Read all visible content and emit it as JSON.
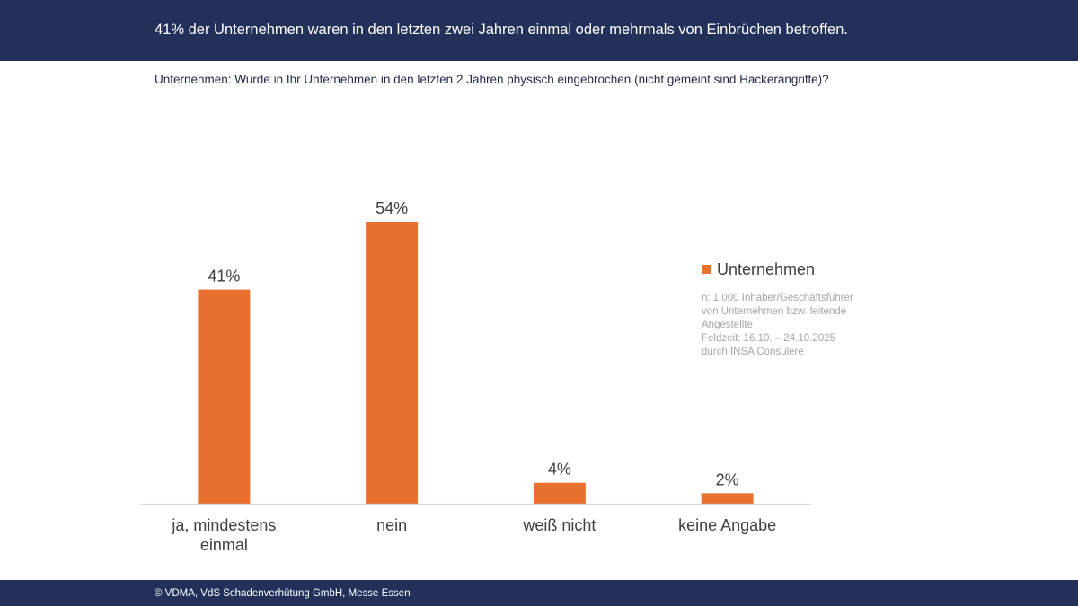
{
  "header": {
    "title": "41% der Unternehmen waren in den letzten zwei Jahren einmal oder mehrmals von Einbrüchen betroffen."
  },
  "subtitle": "Unternehmen: Wurde in Ihr Unternehmen in den letzten 2 Jahren physisch eingebrochen (nicht gemeint sind Hackerangriffe)?",
  "footer": {
    "copyright": "© VDMA, VdS Schadenverhütung GmbH, Messe Essen"
  },
  "colors": {
    "bar": "#e87130",
    "header_bg": "#22305a",
    "axis": "#d9d9d9",
    "label_text": "#404040",
    "note_text": "#a6a6a6"
  },
  "note": {
    "lines": [
      "n: 1.000 Inhaber/Geschäftsführer",
      "von Unternehmen bzw. leitende",
      "Angestellte",
      "Feldzeit: 16.10. – 24.10.2025",
      "durch INSA Consulere"
    ]
  },
  "chart_data": {
    "type": "bar",
    "title": "Unternehmen: Wurde in Ihr Unternehmen in den letzten 2 Jahren physisch eingebrochen (nicht gemeint sind Hackerangriffe)?",
    "categories": [
      [
        "ja, mindestens",
        "einmal"
      ],
      [
        "nein"
      ],
      [
        "weiß nicht"
      ],
      [
        "keine Angabe"
      ]
    ],
    "series": [
      {
        "name": "Unternehmen",
        "values": [
          41,
          54,
          4,
          2
        ]
      }
    ],
    "data_labels": [
      "41%",
      "54%",
      "4%",
      "2%"
    ],
    "unit": "%",
    "xlabel": "",
    "ylabel": "",
    "ylim": [
      0,
      60
    ],
    "grid": false,
    "y_axis_visible": false,
    "legend_position": "right"
  }
}
